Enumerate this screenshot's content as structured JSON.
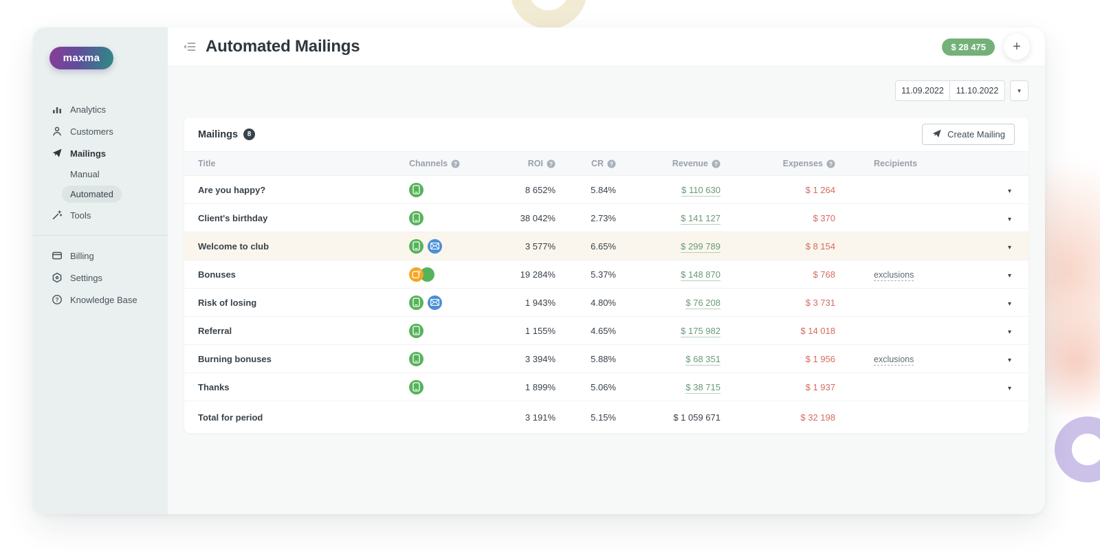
{
  "colors": {
    "accent_green": "#74b179",
    "expense_red": "#d66a62",
    "revenue_link_green": "#679a77",
    "sms_channel": "#57b35b",
    "email_channel": "#4b8fd6",
    "push_channel": "#f6a623",
    "sidebar_bg": "#e9f0ef",
    "highlight_row_bg": "#faf6ed"
  },
  "icons": {
    "add": "+",
    "caret_down": "▾"
  },
  "sidebar": {
    "logo": "maxma",
    "nav": [
      {
        "label": "Analytics",
        "icon": "analytics",
        "name": "analytics"
      },
      {
        "label": "Customers",
        "icon": "customers",
        "name": "customers"
      },
      {
        "label": "Mailings",
        "icon": "mailings",
        "name": "mailings",
        "active": true
      },
      {
        "label": "Manual",
        "sub": true,
        "name": "manual"
      },
      {
        "label": "Automated",
        "sub": true,
        "name": "automated",
        "active": true
      },
      {
        "label": "Tools",
        "icon": "tools",
        "name": "tools"
      }
    ],
    "nav_secondary": [
      {
        "label": "Billing",
        "icon": "billing",
        "name": "billing"
      },
      {
        "label": "Settings",
        "icon": "settings",
        "name": "settings"
      },
      {
        "label": "Knowledge Base",
        "icon": "knowledge-base",
        "name": "knowledge-base"
      }
    ]
  },
  "header": {
    "title": "Automated Mailings",
    "balance": "$ 28 475"
  },
  "filters": {
    "date_from": "11.09.2022",
    "date_to": "11.10.2022"
  },
  "table": {
    "title": "Mailings",
    "count": "8",
    "create_button": "Create Mailing",
    "columns": [
      {
        "label": "Title",
        "help": false,
        "align": "l",
        "key": "title"
      },
      {
        "label": "Channels",
        "help": true,
        "align": "l",
        "key": "channels"
      },
      {
        "label": "ROI",
        "help": true,
        "align": "r",
        "key": "roi"
      },
      {
        "label": "CR",
        "help": true,
        "align": "r",
        "key": "cr"
      },
      {
        "label": "Revenue",
        "help": true,
        "align": "r",
        "key": "revenue"
      },
      {
        "label": "Expenses",
        "help": true,
        "align": "r",
        "key": "expenses"
      },
      {
        "label": "Recipients",
        "help": false,
        "align": "l",
        "key": "recipients"
      }
    ],
    "rows": [
      {
        "title": "Are you happy?",
        "channels": [
          "sms"
        ],
        "roi": "8 652%",
        "cr": "5.84%",
        "revenue": "$ 110 630",
        "expenses": "$ 1 264",
        "recipients": ""
      },
      {
        "title": "Client's birthday",
        "channels": [
          "sms"
        ],
        "roi": "38 042%",
        "cr": "2.73%",
        "revenue": "$ 141 127",
        "expenses": "$ 370",
        "recipients": ""
      },
      {
        "title": "Welcome to club",
        "channels": [
          "sms",
          "email"
        ],
        "roi": "3 577%",
        "cr": "6.65%",
        "revenue": "$ 299 789",
        "expenses": "$ 8 154",
        "recipients": "",
        "highlighted": true
      },
      {
        "title": "Bonuses",
        "channels": [
          "push",
          "sms"
        ],
        "overlapped": true,
        "roi": "19 284%",
        "cr": "5.37%",
        "revenue": "$ 148 870",
        "expenses": "$ 768",
        "recipients": "exclusions"
      },
      {
        "title": "Risk of losing",
        "channels": [
          "sms",
          "email"
        ],
        "roi": "1 943%",
        "cr": "4.80%",
        "revenue": "$ 76 208",
        "expenses": "$ 3 731",
        "recipients": ""
      },
      {
        "title": "Referral",
        "channels": [
          "sms"
        ],
        "roi": "1 155%",
        "cr": "4.65%",
        "revenue": "$ 175 982",
        "expenses": "$ 14 018",
        "recipients": ""
      },
      {
        "title": "Burning bonuses",
        "channels": [
          "sms"
        ],
        "roi": "3 394%",
        "cr": "5.88%",
        "revenue": "$ 68 351",
        "expenses": "$ 1 956",
        "recipients": "exclusions"
      },
      {
        "title": "Thanks",
        "channels": [
          "sms"
        ],
        "roi": "1 899%",
        "cr": "5.06%",
        "revenue": "$ 38 715",
        "expenses": "$ 1 937",
        "recipients": ""
      }
    ],
    "total": {
      "title": "Total for period",
      "roi": "3 191%",
      "cr": "5.15%",
      "revenue": "$ 1 059 671",
      "expenses": "$ 32 198"
    }
  }
}
